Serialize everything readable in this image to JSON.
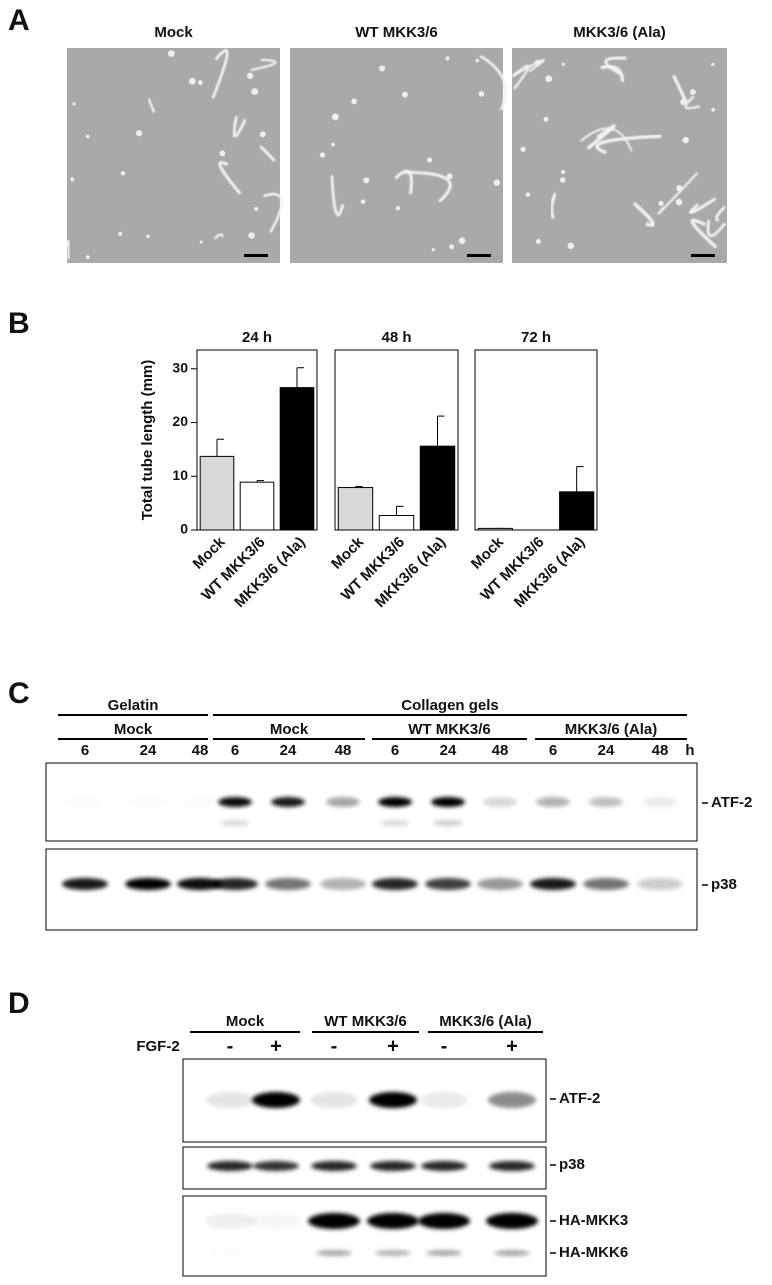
{
  "panel_a": {
    "label": "A",
    "images": [
      {
        "title": "Mock"
      },
      {
        "title": "WT MKK3/6"
      },
      {
        "title": "MKK3/6 (Ala)"
      }
    ]
  },
  "panel_b_label": "B",
  "chart_data": [
    {
      "type": "bar",
      "title": "24 h",
      "ylabel": "Total tube length (mm)",
      "categories": [
        "Mock",
        "WT MKK3/6",
        "MKK3/6 (Ala)"
      ],
      "values": [
        13.7,
        8.9,
        26.5
      ],
      "errors": [
        3.2,
        0.3,
        3.7
      ],
      "colors": [
        "#d9d9d9",
        "#ffffff",
        "#000000"
      ],
      "ylim": [
        0,
        33.5
      ],
      "yticks": [
        0,
        10,
        20,
        30
      ]
    },
    {
      "type": "bar",
      "title": "48 h",
      "categories": [
        "Mock",
        "WT MKK3/6",
        "MKK3/6 (Ala)"
      ],
      "values": [
        7.9,
        2.7,
        15.6
      ],
      "errors": [
        0.2,
        1.7,
        5.6
      ],
      "colors": [
        "#d9d9d9",
        "#ffffff",
        "#000000"
      ],
      "ylim": [
        0,
        33.5
      ]
    },
    {
      "type": "bar",
      "title": "72 h",
      "categories": [
        "Mock",
        "WT MKK3/6",
        "MKK3/6 (Ala)"
      ],
      "values": [
        0.3,
        0,
        7.1
      ],
      "errors": [
        0,
        0,
        4.7
      ],
      "colors": [
        "#d9d9d9",
        "#ffffff",
        "#000000"
      ],
      "ylim": [
        0,
        33.5
      ]
    }
  ],
  "panel_c": {
    "label": "C",
    "top_groups": [
      "Gelatin",
      "Collagen gels"
    ],
    "groups": [
      "Mock",
      "Mock",
      "WT MKK3/6",
      "MKK3/6 (Ala)"
    ],
    "times": [
      6,
      24,
      48,
      6,
      24,
      48,
      6,
      24,
      48,
      6,
      24,
      48
    ],
    "unit": "h",
    "blots": [
      "ATF-2",
      "p38"
    ]
  },
  "panel_d": {
    "label": "D",
    "groups": [
      "Mock",
      "WT MKK3/6",
      "MKK3/6 (Ala)"
    ],
    "treatment": "FGF-2",
    "conditions": [
      "-",
      "+",
      "-",
      "+",
      "-",
      "+"
    ],
    "blots": [
      "ATF-2",
      "p38",
      "HA-MKK3",
      "HA-MKK6"
    ]
  }
}
